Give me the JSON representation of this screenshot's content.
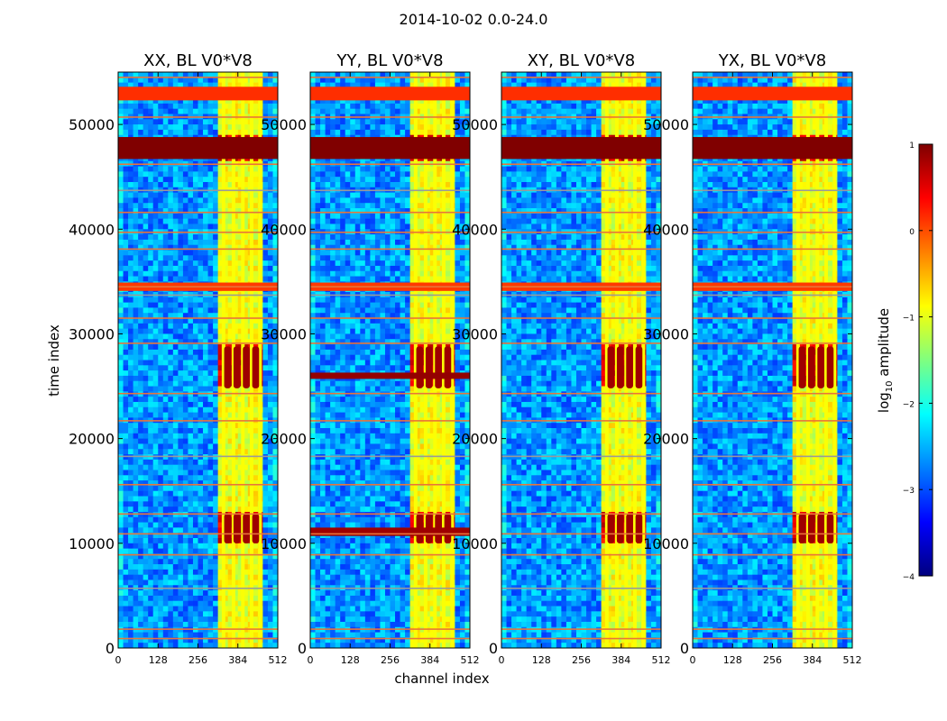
{
  "suptitle": "2014-10-02 0.0-24.0",
  "chart_data": {
    "type": "heatmap",
    "suptitle": "2014-10-02 0.0-24.0",
    "xlabel": "channel index",
    "ylabel": "time index",
    "xlim": [
      0,
      512
    ],
    "ylim": [
      0,
      55000
    ],
    "xticks": [
      0,
      128,
      256,
      384,
      512
    ],
    "yticks": [
      0,
      10000,
      20000,
      30000,
      40000,
      50000
    ],
    "xtick_labels": [
      "0",
      "128",
      "256",
      "384",
      "512"
    ],
    "ytick_labels": [
      "0",
      "10000",
      "20000",
      "30000",
      "40000",
      "50000"
    ],
    "panels": [
      {
        "title": "XX, BL V0*V8",
        "polarization": "XX"
      },
      {
        "title": "YY, BL V0*V8",
        "polarization": "YY"
      },
      {
        "title": "XY, BL V0*V8",
        "polarization": "XY"
      },
      {
        "title": "YX, BL V0*V8",
        "polarization": "YX"
      }
    ],
    "colorbar": {
      "label_prefix": "log",
      "label_sub": "10",
      "label_suffix": " amplitude",
      "range": [
        -4,
        1
      ],
      "ticks": [
        -4,
        -3,
        -2,
        -1,
        0,
        1
      ],
      "tick_labels": [
        "−4",
        "−3",
        "−2",
        "−1",
        "0",
        "1"
      ],
      "colormap": "jet"
    },
    "features": {
      "bright_channel_band": [
        325,
        470
      ],
      "bright_channel_lines": [
        338,
        370,
        400,
        428,
        455
      ],
      "high_amplitude_time_ranges": [
        [
          10000,
          12800
        ],
        [
          24800,
          28800
        ],
        [
          46700,
          48800
        ],
        [
          52300,
          53600
        ]
      ],
      "time_of_horizontal_lines": [
        900,
        1800,
        5700,
        8900,
        10900,
        12800,
        15600,
        18300,
        21700,
        24300,
        29100,
        31500,
        33700,
        34500,
        38100,
        39700,
        41600,
        43700,
        46200,
        50700,
        54500
      ]
    }
  }
}
